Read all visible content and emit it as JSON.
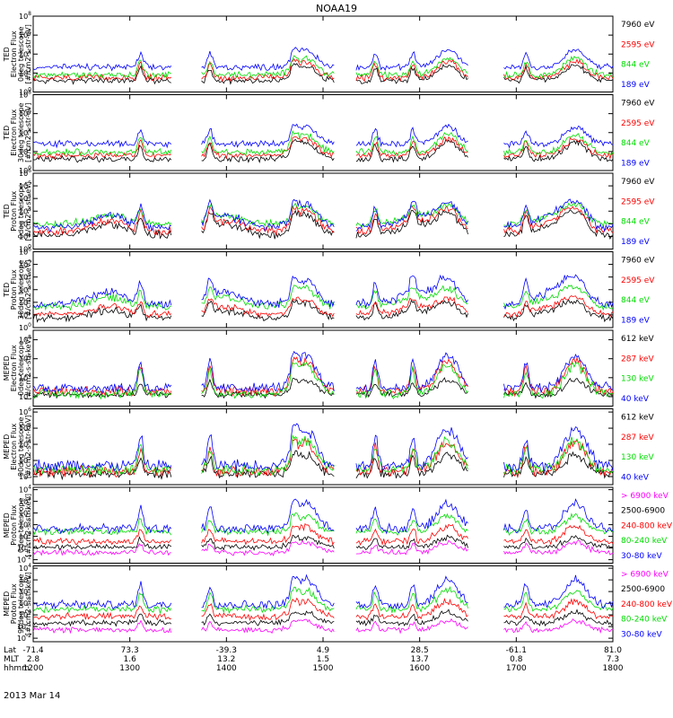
{
  "title": "NOAA19",
  "date": "2013 Mar 14",
  "chart_data": {
    "type": "line",
    "title": "NOAA19",
    "x": {
      "row_labels": [
        "Lat",
        "MLT",
        "hhmm"
      ],
      "ticks": [
        {
          "lat": "-71.4",
          "mlt": "2.8",
          "hhmm": "1200"
        },
        {
          "lat": "73.3",
          "mlt": "1.6",
          "hhmm": "1300"
        },
        {
          "lat": "-39.3",
          "mlt": "13.2",
          "hhmm": "1400"
        },
        {
          "lat": "4.9",
          "mlt": "1.5",
          "hhmm": "1500"
        },
        {
          "lat": "28.5",
          "mlt": "13.7",
          "hhmm": "1600"
        },
        {
          "lat": "-61.1",
          "mlt": "0.8",
          "hhmm": "1700"
        },
        {
          "lat": "81.0",
          "mlt": "7.3",
          "hhmm": "1800"
        }
      ]
    },
    "panels": [
      {
        "ylabel": [
          "TED",
          "Electron Flux",
          "0deg telescope",
          "[#/cm2-s-str-eV]"
        ],
        "yticks": [
          "10^0",
          "10^2",
          "10^4",
          "10^6",
          "10^8"
        ],
        "ylim_exp": [
          0,
          8
        ],
        "series": [
          {
            "name": "7960 eV",
            "color": "#000000",
            "base": 1.0,
            "peak": 2.6
          },
          {
            "name": "2595 eV",
            "color": "#ff0000",
            "base": 1.3,
            "peak": 3.0
          },
          {
            "name": "844 eV",
            "color": "#00dd00",
            "base": 1.6,
            "peak": 3.4
          },
          {
            "name": "189 eV",
            "color": "#0000ff",
            "base": 2.4,
            "peak": 4.2
          }
        ]
      },
      {
        "ylabel": [
          "TED",
          "Electron Flux",
          "30deg telescope",
          "[#/cm2-s-str-eV]"
        ],
        "yticks": [
          "10^0",
          "10^2",
          "10^4",
          "10^6",
          "10^8"
        ],
        "ylim_exp": [
          0,
          8
        ],
        "series": [
          {
            "name": "7960 eV",
            "color": "#000000",
            "base": 1.0,
            "peak": 2.8
          },
          {
            "name": "2595 eV",
            "color": "#ff0000",
            "base": 1.4,
            "peak": 3.1
          },
          {
            "name": "844 eV",
            "color": "#00dd00",
            "base": 1.7,
            "peak": 3.6
          },
          {
            "name": "189 eV",
            "color": "#0000ff",
            "base": 2.6,
            "peak": 4.4
          }
        ]
      },
      {
        "ylabel": [
          "TED",
          "Proton Flux",
          "0deg telescope",
          "[#/cm2-s-str-eV]"
        ],
        "yticks": [
          "10^0",
          "10^1",
          "10^2",
          "10^3",
          "10^4",
          "10^5",
          "10^6"
        ],
        "ylim_exp": [
          0,
          6
        ],
        "series": [
          {
            "name": "7960 eV",
            "color": "#000000",
            "base": 0.9,
            "peak": 2.6
          },
          {
            "name": "2595 eV",
            "color": "#ff0000",
            "base": 1.2,
            "peak": 2.9
          },
          {
            "name": "844 eV",
            "color": "#00dd00",
            "base": 1.8,
            "peak": 3.2
          },
          {
            "name": "189 eV",
            "color": "#0000ff",
            "base": 1.5,
            "peak": 3.4
          }
        ]
      },
      {
        "ylabel": [
          "TED",
          "Proton Flux",
          "30deg telescope",
          "[#/cm2-s-str-eV]"
        ],
        "yticks": [
          "10^0",
          "10^1",
          "10^2",
          "10^3",
          "10^4",
          "10^5",
          "10^6"
        ],
        "ylim_exp": [
          0,
          6
        ],
        "series": [
          {
            "name": "7960 eV",
            "color": "#000000",
            "base": 0.6,
            "peak": 1.8
          },
          {
            "name": "2595 eV",
            "color": "#ff0000",
            "base": 0.9,
            "peak": 2.1
          },
          {
            "name": "844 eV",
            "color": "#00dd00",
            "base": 1.5,
            "peak": 2.9
          },
          {
            "name": "189 eV",
            "color": "#0000ff",
            "base": 1.6,
            "peak": 3.6
          }
        ]
      },
      {
        "ylabel": [
          "MEPED",
          "Electron Flux",
          "0deg telescope",
          "[#/cm2-s-str-keV]"
        ],
        "yticks": [
          "10^2",
          "10^4",
          "10^6",
          "10^8"
        ],
        "ylim_exp": [
          1,
          9
        ],
        "series": [
          {
            "name": "612 keV",
            "color": "#000000",
            "base": 2.0,
            "peak": 3.6
          },
          {
            "name": "287 keV",
            "color": "#ff0000",
            "base": 2.2,
            "peak": 5.4
          },
          {
            "name": "130 keV",
            "color": "#00dd00",
            "base": 1.9,
            "peak": 5.0
          },
          {
            "name": "40 keV",
            "color": "#0000ff",
            "base": 2.5,
            "peak": 5.9
          }
        ]
      },
      {
        "ylabel": [
          "MEPED",
          "Electron Flux",
          "90deg telescope",
          "[#/cm2-s-str-keV]"
        ],
        "yticks": [
          "10^2",
          "10^3",
          "10^4",
          "10^5",
          "10^6"
        ],
        "ylim_exp": [
          1.5,
          6.2
        ],
        "series": [
          {
            "name": "612 keV",
            "color": "#000000",
            "base": 2.0,
            "peak": 3.2
          },
          {
            "name": "287 keV",
            "color": "#ff0000",
            "base": 2.1,
            "peak": 3.9
          },
          {
            "name": "130 keV",
            "color": "#00dd00",
            "base": 2.2,
            "peak": 4.0
          },
          {
            "name": "40 keV",
            "color": "#0000ff",
            "base": 2.4,
            "peak": 4.7
          }
        ]
      },
      {
        "ylabel": [
          "MEPED",
          "Proton Flux",
          "0deg telescope",
          "[#/cm2-s-str-keV]"
        ],
        "yticks": [
          "10^-2",
          "10^-1",
          "10^0",
          "10^1",
          "10^2",
          "10^3",
          "10^4"
        ],
        "ylim_exp": [
          -2.3,
          4.2
        ],
        "series": [
          {
            "name": "> 6900 keV",
            "color": "#ff00ff",
            "base": -1.5,
            "peak": -0.6
          },
          {
            "name": "2500-6900",
            "color": "#000000",
            "base": -1.0,
            "peak": -0.2
          },
          {
            "name": "240-800 keV",
            "color": "#ff0000",
            "base": -0.6,
            "peak": 0.7
          },
          {
            "name": "80-240 keV",
            "color": "#00dd00",
            "base": 0.2,
            "peak": 1.6
          },
          {
            "name": "30-80 keV",
            "color": "#0000ff",
            "base": 0.4,
            "peak": 2.6
          }
        ]
      },
      {
        "ylabel": [
          "MEPED",
          "Proton Flux",
          "90deg telescope",
          "[#/cm2-s-str-keV]"
        ],
        "yticks": [
          "10^-2",
          "10^-1",
          "10^0",
          "10^1",
          "10^2",
          "10^3",
          "10^4"
        ],
        "ylim_exp": [
          -2.3,
          4.2
        ],
        "series": [
          {
            "name": "> 6900 keV",
            "color": "#ff00ff",
            "base": -1.4,
            "peak": -0.6
          },
          {
            "name": "2500-6900",
            "color": "#000000",
            "base": -0.8,
            "peak": 0.1
          },
          {
            "name": "240-800 keV",
            "color": "#ff0000",
            "base": -0.3,
            "peak": 1.0
          },
          {
            "name": "80-240 keV",
            "color": "#00dd00",
            "base": 0.3,
            "peak": 1.9
          },
          {
            "name": "30-80 keV",
            "color": "#0000ff",
            "base": 0.6,
            "peak": 2.8
          }
        ]
      }
    ]
  }
}
